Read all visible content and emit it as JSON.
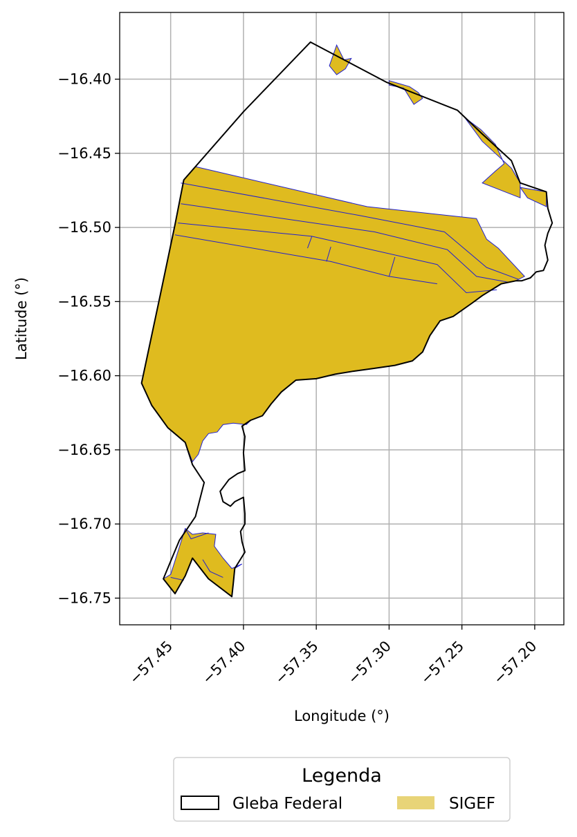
{
  "chart_data": {
    "type": "map",
    "xlabel": "Longitude (°)",
    "ylabel": "Latitude (°)",
    "xlim": [
      -57.485,
      -57.18
    ],
    "ylim": [
      -16.768,
      -16.355
    ],
    "xticks": [
      -57.45,
      -57.4,
      -57.35,
      -57.3,
      -57.25,
      -57.2
    ],
    "xtick_labels": [
      "−57.45",
      "−57.40",
      "−57.35",
      "−57.30",
      "−57.25",
      "−57.20"
    ],
    "yticks": [
      -16.4,
      -16.45,
      -16.5,
      -16.55,
      -16.6,
      -16.65,
      -16.7,
      -16.75
    ],
    "ytick_labels": [
      "−16.40",
      "−16.45",
      "−16.50",
      "−16.55",
      "−16.60",
      "−16.65",
      "−16.70",
      "−16.75"
    ],
    "grid": true,
    "legend": {
      "title": "Legenda",
      "placement": "below",
      "entries": [
        {
          "label": "Gleba Federal",
          "fill": "#ffffff",
          "edge": "#000000"
        },
        {
          "label": "SIGEF",
          "fill": "#e8d478",
          "edge": "#e8d478"
        }
      ]
    },
    "colors": {
      "gleba_edge": "#000000",
      "sigef_fill": "#dfbb1f",
      "sigef_edge": "#1f1fd0",
      "grid": "#b0b0b0"
    },
    "gleba_federal": [
      [
        -57.354,
        -16.375
      ],
      [
        -57.302,
        -16.402
      ],
      [
        -57.253,
        -16.421
      ],
      [
        -57.236,
        -16.437
      ],
      [
        -57.216,
        -16.455
      ],
      [
        -57.21,
        -16.47
      ],
      [
        -57.192,
        -16.476
      ],
      [
        -57.191,
        -16.487
      ],
      [
        -57.188,
        -16.497
      ],
      [
        -57.191,
        -16.504
      ],
      [
        -57.193,
        -16.512
      ],
      [
        -57.191,
        -16.522
      ],
      [
        -57.194,
        -16.529
      ],
      [
        -57.199,
        -16.53
      ],
      [
        -57.203,
        -16.534
      ],
      [
        -57.209,
        -16.536
      ],
      [
        -57.213,
        -16.536
      ],
      [
        -57.223,
        -16.538
      ],
      [
        -57.236,
        -16.546
      ],
      [
        -57.243,
        -16.551
      ],
      [
        -57.256,
        -16.56
      ],
      [
        -57.265,
        -16.563
      ],
      [
        -57.272,
        -16.573
      ],
      [
        -57.277,
        -16.584
      ],
      [
        -57.284,
        -16.59
      ],
      [
        -57.296,
        -16.593
      ],
      [
        -57.31,
        -16.595
      ],
      [
        -57.325,
        -16.597
      ],
      [
        -57.337,
        -16.599
      ],
      [
        -57.35,
        -16.602
      ],
      [
        -57.364,
        -16.603
      ],
      [
        -57.374,
        -16.611
      ],
      [
        -57.381,
        -16.619
      ],
      [
        -57.387,
        -16.627
      ],
      [
        -57.395,
        -16.63
      ],
      [
        -57.401,
        -16.634
      ],
      [
        -57.399,
        -16.641
      ],
      [
        -57.4,
        -16.652
      ],
      [
        -57.399,
        -16.664
      ],
      [
        -57.404,
        -16.666
      ],
      [
        -57.41,
        -16.67
      ],
      [
        -57.416,
        -16.678
      ],
      [
        -57.414,
        -16.685
      ],
      [
        -57.409,
        -16.688
      ],
      [
        -57.406,
        -16.685
      ],
      [
        -57.4,
        -16.682
      ],
      [
        -57.399,
        -16.693
      ],
      [
        -57.399,
        -16.7
      ],
      [
        -57.402,
        -16.705
      ],
      [
        -57.401,
        -16.712
      ],
      [
        -57.399,
        -16.719
      ],
      [
        -57.406,
        -16.73
      ],
      [
        -57.407,
        -16.74
      ],
      [
        -57.408,
        -16.749
      ],
      [
        -57.424,
        -16.737
      ],
      [
        -57.435,
        -16.723
      ],
      [
        -57.44,
        -16.735
      ],
      [
        -57.447,
        -16.747
      ],
      [
        -57.455,
        -16.737
      ],
      [
        -57.444,
        -16.711
      ],
      [
        -57.433,
        -16.695
      ],
      [
        -57.427,
        -16.672
      ],
      [
        -57.435,
        -16.66
      ],
      [
        -57.44,
        -16.645
      ],
      [
        -57.452,
        -16.635
      ],
      [
        -57.463,
        -16.62
      ],
      [
        -57.47,
        -16.605
      ],
      [
        -57.457,
        -16.545
      ],
      [
        -57.447,
        -16.498
      ],
      [
        -57.441,
        -16.468
      ],
      [
        -57.4,
        -16.422
      ],
      [
        -57.354,
        -16.375
      ]
    ],
    "sigef_main": [
      [
        -57.433,
        -16.459
      ],
      [
        -57.35,
        -16.478
      ],
      [
        -57.315,
        -16.486
      ],
      [
        -57.24,
        -16.494
      ],
      [
        -57.233,
        -16.508
      ],
      [
        -57.225,
        -16.514
      ],
      [
        -57.207,
        -16.533
      ],
      [
        -57.213,
        -16.536
      ],
      [
        -57.223,
        -16.538
      ],
      [
        -57.236,
        -16.546
      ],
      [
        -57.243,
        -16.551
      ],
      [
        -57.256,
        -16.56
      ],
      [
        -57.265,
        -16.563
      ],
      [
        -57.272,
        -16.573
      ],
      [
        -57.277,
        -16.584
      ],
      [
        -57.284,
        -16.59
      ],
      [
        -57.296,
        -16.593
      ],
      [
        -57.31,
        -16.595
      ],
      [
        -57.325,
        -16.597
      ],
      [
        -57.337,
        -16.599
      ],
      [
        -57.35,
        -16.602
      ],
      [
        -57.364,
        -16.603
      ],
      [
        -57.374,
        -16.611
      ],
      [
        -57.381,
        -16.619
      ],
      [
        -57.387,
        -16.627
      ],
      [
        -57.395,
        -16.63
      ],
      [
        -57.398,
        -16.633
      ],
      [
        -57.407,
        -16.632
      ],
      [
        -57.414,
        -16.633
      ],
      [
        -57.418,
        -16.638
      ],
      [
        -57.424,
        -16.639
      ],
      [
        -57.428,
        -16.644
      ],
      [
        -57.431,
        -16.653
      ],
      [
        -57.435,
        -16.658
      ],
      [
        -57.44,
        -16.645
      ],
      [
        -57.452,
        -16.635
      ],
      [
        -57.463,
        -16.62
      ],
      [
        -57.47,
        -16.605
      ],
      [
        -57.457,
        -16.545
      ],
      [
        -57.447,
        -16.498
      ],
      [
        -57.441,
        -16.468
      ],
      [
        -57.433,
        -16.459
      ]
    ],
    "sigef_south": [
      [
        -57.44,
        -16.703
      ],
      [
        -57.45,
        -16.734
      ],
      [
        -57.455,
        -16.737
      ],
      [
        -57.447,
        -16.747
      ],
      [
        -57.44,
        -16.735
      ],
      [
        -57.435,
        -16.723
      ],
      [
        -57.424,
        -16.737
      ],
      [
        -57.408,
        -16.749
      ],
      [
        -57.407,
        -16.74
      ],
      [
        -57.406,
        -16.73
      ],
      [
        -57.401,
        -16.727
      ],
      [
        -57.408,
        -16.73
      ],
      [
        -57.414,
        -16.723
      ],
      [
        -57.42,
        -16.715
      ],
      [
        -57.419,
        -16.707
      ],
      [
        -57.428,
        -16.706
      ],
      [
        -57.435,
        -16.707
      ],
      [
        -57.44,
        -16.703
      ]
    ],
    "sigef_small": [
      [
        [
          -57.336,
          -16.377
        ],
        [
          -57.331,
          -16.387
        ],
        [
          -57.326,
          -16.386
        ],
        [
          -57.33,
          -16.393
        ],
        [
          -57.336,
          -16.397
        ],
        [
          -57.341,
          -16.391
        ],
        [
          -57.336,
          -16.377
        ]
      ],
      [
        [
          -57.3,
          -16.401
        ],
        [
          -57.293,
          -16.403
        ],
        [
          -57.286,
          -16.405
        ],
        [
          -57.28,
          -16.409
        ],
        [
          -57.277,
          -16.413
        ],
        [
          -57.283,
          -16.417
        ],
        [
          -57.29,
          -16.406
        ],
        [
          -57.3,
          -16.404
        ],
        [
          -57.3,
          -16.401
        ]
      ],
      [
        [
          -57.248,
          -16.426
        ],
        [
          -57.237,
          -16.434
        ],
        [
          -57.227,
          -16.444
        ],
        [
          -57.221,
          -16.457
        ],
        [
          -57.227,
          -16.462
        ],
        [
          -57.236,
          -16.47
        ],
        [
          -57.21,
          -16.48
        ],
        [
          -57.21,
          -16.47
        ],
        [
          -57.216,
          -16.46
        ],
        [
          -57.236,
          -16.442
        ],
        [
          -57.248,
          -16.426
        ]
      ],
      [
        [
          -57.21,
          -16.473
        ],
        [
          -57.192,
          -16.476
        ],
        [
          -57.192,
          -16.486
        ],
        [
          -57.205,
          -16.48
        ],
        [
          -57.21,
          -16.473
        ]
      ]
    ],
    "sigef_divisions": [
      [
        [
          -57.443,
          -16.47
        ],
        [
          -57.32,
          -16.492
        ],
        [
          -57.262,
          -16.503
        ],
        [
          -57.233,
          -16.527
        ],
        [
          -57.211,
          -16.535
        ]
      ],
      [
        [
          -57.443,
          -16.484
        ],
        [
          -57.31,
          -16.503
        ],
        [
          -57.26,
          -16.515
        ],
        [
          -57.24,
          -16.533
        ],
        [
          -57.218,
          -16.537
        ]
      ],
      [
        [
          -57.445,
          -16.497
        ],
        [
          -57.353,
          -16.506
        ],
        [
          -57.267,
          -16.525
        ],
        [
          -57.247,
          -16.544
        ],
        [
          -57.226,
          -16.542
        ]
      ],
      [
        [
          -57.447,
          -16.505
        ],
        [
          -57.34,
          -16.523
        ],
        [
          -57.3,
          -16.533
        ],
        [
          -57.267,
          -16.538
        ]
      ],
      [
        [
          -57.353,
          -16.506
        ],
        [
          -57.356,
          -16.514
        ]
      ],
      [
        [
          -57.34,
          -16.513
        ],
        [
          -57.343,
          -16.523
        ]
      ],
      [
        [
          -57.296,
          -16.52
        ],
        [
          -57.3,
          -16.533
        ]
      ]
    ],
    "sigef_south_divisions": [
      [
        [
          -57.44,
          -16.703
        ],
        [
          -57.436,
          -16.71
        ],
        [
          -57.424,
          -16.706
        ]
      ],
      [
        [
          -57.428,
          -16.724
        ],
        [
          -57.423,
          -16.732
        ],
        [
          -57.414,
          -16.736
        ]
      ],
      [
        [
          -57.45,
          -16.736
        ],
        [
          -57.441,
          -16.738
        ]
      ]
    ]
  }
}
